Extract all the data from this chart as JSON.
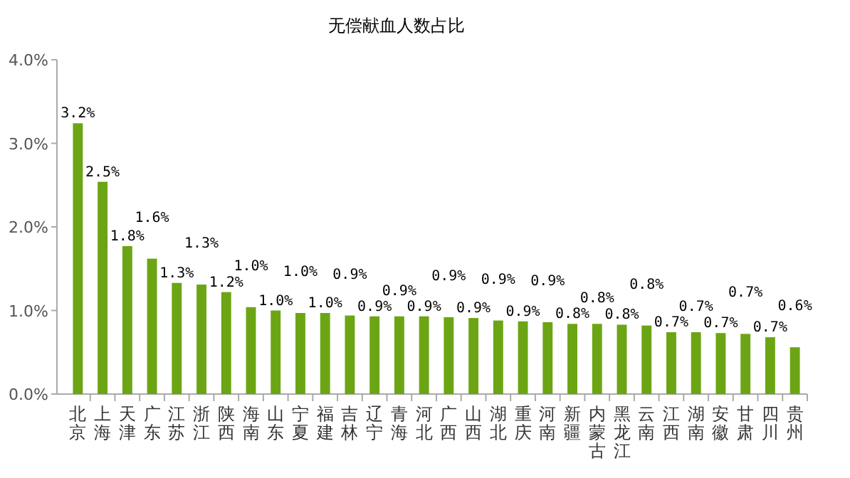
{
  "chart_data": {
    "type": "bar",
    "title": "无偿献血人数占比",
    "categories": [
      "北京",
      "上海",
      "天津",
      "广东",
      "江苏",
      "浙江",
      "陕西",
      "海南",
      "山东",
      "宁夏",
      "福建",
      "吉林",
      "辽宁",
      "青海",
      "河北",
      "广西",
      "山西",
      "湖北",
      "重庆",
      "河南",
      "新疆",
      "内蒙古",
      "黑龙江",
      "云南",
      "江西",
      "湖南",
      "安徽",
      "甘肃",
      "四川",
      "贵州"
    ],
    "values": [
      3.24,
      2.54,
      1.77,
      1.62,
      1.33,
      1.31,
      1.22,
      1.04,
      1.0,
      0.97,
      0.97,
      0.94,
      0.93,
      0.93,
      0.93,
      0.92,
      0.91,
      0.88,
      0.87,
      0.86,
      0.84,
      0.84,
      0.83,
      0.82,
      0.74,
      0.74,
      0.73,
      0.72,
      0.68,
      0.56
    ],
    "value_labels": [
      "3.2%",
      "2.5%",
      "1.8%",
      "1.6%",
      "1.3%",
      "1.3%",
      "1.2%",
      "1.0%",
      "1.0%",
      "1.0%",
      "1.0%",
      "0.9%",
      "0.9%",
      "0.9%",
      "0.9%",
      "0.9%",
      "0.9%",
      "0.9%",
      "0.9%",
      "0.9%",
      "0.8%",
      "0.8%",
      "0.8%",
      "0.8%",
      "0.7%",
      "0.7%",
      "0.7%",
      "0.7%",
      "0.7%",
      "0.6%"
    ],
    "color": "#6ca514",
    "ylim": [
      0,
      4
    ],
    "yticks": [
      {
        "value": 0,
        "label": "0.0%"
      },
      {
        "value": 1,
        "label": "1.0%"
      },
      {
        "value": 2,
        "label": "2.0%"
      },
      {
        "value": 3,
        "label": "3.0%"
      },
      {
        "value": 4,
        "label": "4.0%"
      }
    ]
  }
}
